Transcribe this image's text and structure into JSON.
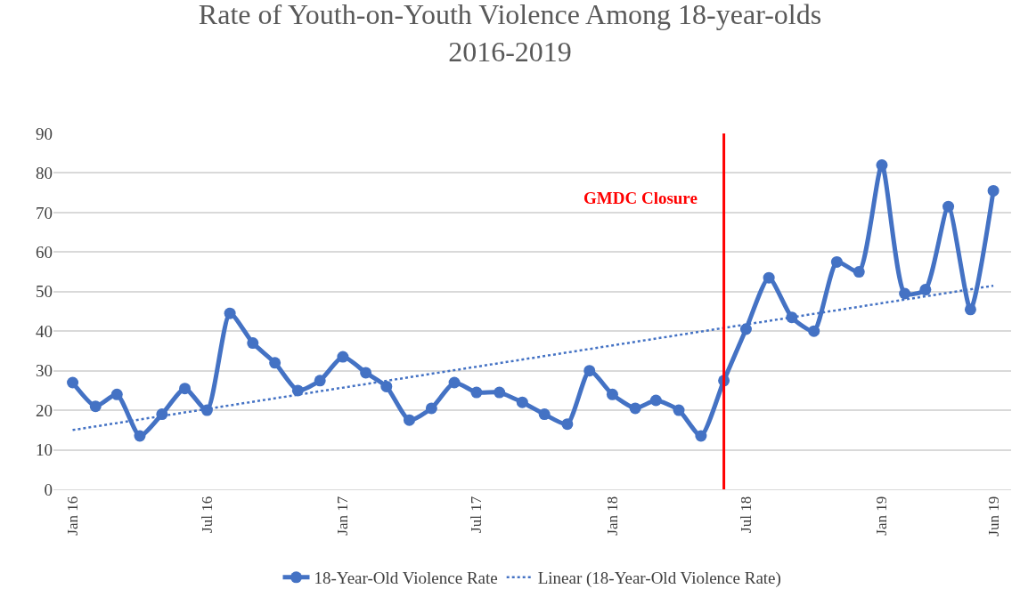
{
  "chart_data": {
    "type": "line",
    "title": "Rate of Youth-on-Youth Violence Among 18-year-olds\n2016-2019",
    "x": [
      "2016-01",
      "2016-02",
      "2016-03",
      "2016-04",
      "2016-05",
      "2016-06",
      "2016-07",
      "2016-08",
      "2016-09",
      "2016-10",
      "2016-11",
      "2016-12",
      "2017-01",
      "2017-02",
      "2017-03",
      "2017-04",
      "2017-05",
      "2017-06",
      "2017-07",
      "2017-08",
      "2017-09",
      "2017-10",
      "2017-11",
      "2017-12",
      "2018-01",
      "2018-02",
      "2018-03",
      "2018-04",
      "2018-05",
      "2018-06",
      "2018-07",
      "2018-08",
      "2018-09",
      "2018-10",
      "2018-11",
      "2018-12",
      "2019-01",
      "2019-02",
      "2019-03",
      "2019-04",
      "2019-05",
      "2019-06"
    ],
    "series": [
      {
        "name": "18-Year-Old Violence Rate",
        "color": "#4472c4",
        "marker": "circle",
        "line_style": "solid",
        "values": [
          27,
          21,
          24,
          13.5,
          19,
          25.5,
          20,
          44.5,
          37,
          32,
          25,
          27.5,
          33.5,
          29.5,
          26,
          17.5,
          20.5,
          27,
          24.5,
          24.5,
          22,
          19,
          16.5,
          30,
          24,
          20.5,
          22.5,
          20,
          13.5,
          27.5,
          40.5,
          53.5,
          43.5,
          40,
          57.5,
          55,
          82,
          49.5,
          50.5,
          71.5,
          45.5,
          75.5
        ]
      },
      {
        "name": "Linear (18-Year-Old Violence Rate)",
        "color": "#4472c4",
        "marker": "none",
        "line_style": "dotted",
        "x": [
          "2016-01",
          "2019-06"
        ],
        "values": [
          15,
          51.5
        ]
      }
    ],
    "ref_lines": [
      {
        "axis": "x",
        "value": "2018-06",
        "label": "GMDC Closure",
        "color": "#ff0000"
      }
    ],
    "xlim": [
      "2015-12-06",
      "2019-06-25"
    ],
    "xticks": [
      {
        "value": "2016-01",
        "label": "Jan 16"
      },
      {
        "value": "2016-07",
        "label": "Jul 16"
      },
      {
        "value": "2017-01",
        "label": "Jan 17"
      },
      {
        "value": "2017-07",
        "label": "Jul 17"
      },
      {
        "value": "2018-01",
        "label": "Jan 18"
      },
      {
        "value": "2018-07",
        "label": "Jul 18"
      },
      {
        "value": "2019-01",
        "label": "Jan 19"
      },
      {
        "value": "2019-06",
        "label": "Jun 19"
      }
    ],
    "ylim": [
      0,
      90
    ],
    "yticks": [
      0,
      10,
      20,
      30,
      40,
      50,
      60,
      70,
      80,
      90
    ],
    "grid": "y",
    "legend": "bottom"
  }
}
